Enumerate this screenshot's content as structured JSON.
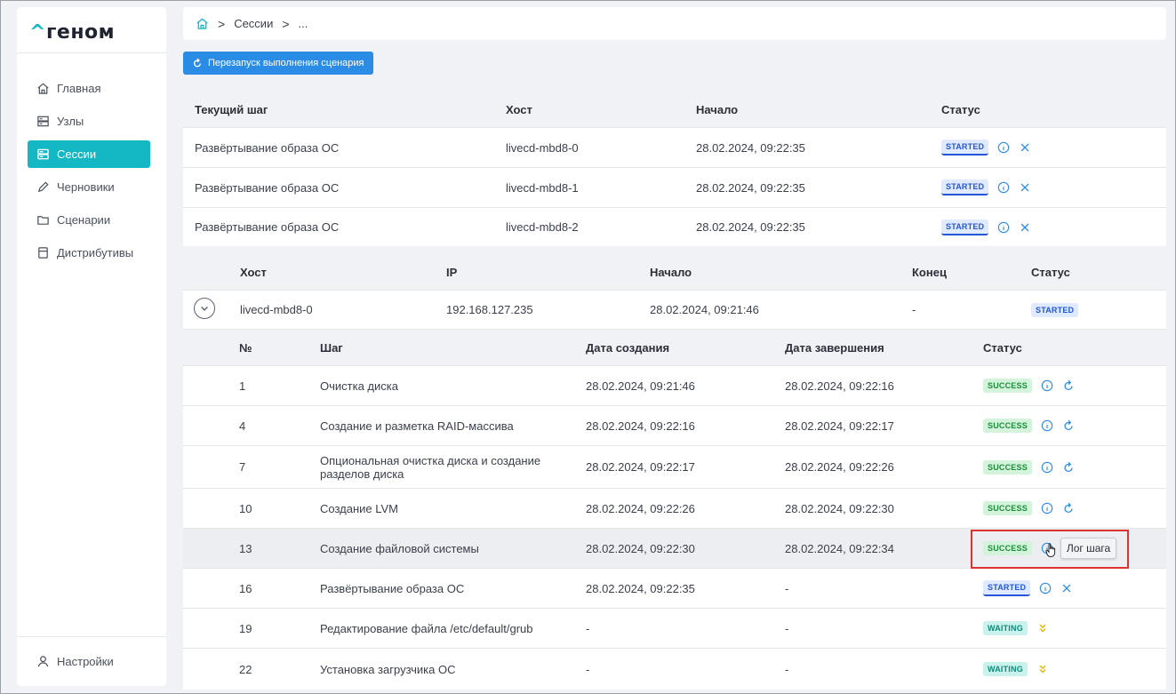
{
  "app": {
    "logo_caret": "^",
    "logo_text": "геном"
  },
  "sidebar": {
    "items": [
      {
        "label": "Главная",
        "icon": "home-icon"
      },
      {
        "label": "Узлы",
        "icon": "server-icon"
      },
      {
        "label": "Сессии",
        "icon": "sessions-icon",
        "active": true
      },
      {
        "label": "Черновики",
        "icon": "pencil-icon"
      },
      {
        "label": "Сценарии",
        "icon": "folder-icon"
      },
      {
        "label": "Дистрибутивы",
        "icon": "box-icon"
      }
    ],
    "settings": "Настройки"
  },
  "breadcrumb": {
    "home_icon": "home-icon",
    "sessions": "Сессии",
    "current": "..."
  },
  "toolbar": {
    "restart_label": "Перезапуск выполнения сценария"
  },
  "current_steps": {
    "headers": [
      "Текущий шаг",
      "Хост",
      "Начало",
      "Статус"
    ],
    "rows": [
      {
        "step": "Развёртывание образа ОС",
        "host": "livecd-mbd8-0",
        "start": "28.02.2024, 09:22:35",
        "status": "STARTED"
      },
      {
        "step": "Развёртывание образа ОС",
        "host": "livecd-mbd8-1",
        "start": "28.02.2024, 09:22:35",
        "status": "STARTED"
      },
      {
        "step": "Развёртывание образа ОС",
        "host": "livecd-mbd8-2",
        "start": "28.02.2024, 09:22:35",
        "status": "STARTED"
      }
    ]
  },
  "hosts": {
    "headers": [
      "Хост",
      "IP",
      "Начало",
      "Конец",
      "Статус"
    ],
    "host_row": {
      "host": "livecd-mbd8-0",
      "ip": "192.168.127.235",
      "start": "28.02.2024, 09:21:46",
      "end": "-",
      "status": "STARTED"
    },
    "step_headers": [
      "№",
      "Шаг",
      "Дата создания",
      "Дата завершения",
      "Статус"
    ],
    "steps": [
      {
        "num": "1",
        "name": "Очистка диска",
        "created": "28.02.2024, 09:21:46",
        "finished": "28.02.2024, 09:22:16",
        "status": "SUCCESS"
      },
      {
        "num": "4",
        "name": "Создание и разметка RAID-массива",
        "created": "28.02.2024, 09:22:16",
        "finished": "28.02.2024, 09:22:17",
        "status": "SUCCESS"
      },
      {
        "num": "7",
        "name": "Опциональная очистка диска и создание разделов диска",
        "created": "28.02.2024, 09:22:17",
        "finished": "28.02.2024, 09:22:26",
        "status": "SUCCESS"
      },
      {
        "num": "10",
        "name": "Создание LVM",
        "created": "28.02.2024, 09:22:26",
        "finished": "28.02.2024, 09:22:30",
        "status": "SUCCESS"
      },
      {
        "num": "13",
        "name": "Создание файловой системы",
        "created": "28.02.2024, 09:22:30",
        "finished": "28.02.2024, 09:22:34",
        "status": "SUCCESS"
      },
      {
        "num": "16",
        "name": "Развёртывание образа ОС",
        "created": "28.02.2024, 09:22:35",
        "finished": "-",
        "status": "STARTED"
      },
      {
        "num": "19",
        "name": "Редактирование файла /etc/default/grub",
        "created": "-",
        "finished": "-",
        "status": "WAITING"
      },
      {
        "num": "22",
        "name": "Установка загрузчика ОС",
        "created": "-",
        "finished": "-",
        "status": "WAITING"
      }
    ]
  },
  "tooltip": {
    "text": "Лог шага"
  },
  "colors": {
    "accent": "#14b8c4",
    "primary": "#2b8ce6",
    "success": "#1c8c3b",
    "started": "#2456d6",
    "waiting": "#0f8a7a",
    "highlight": "#e03131"
  }
}
